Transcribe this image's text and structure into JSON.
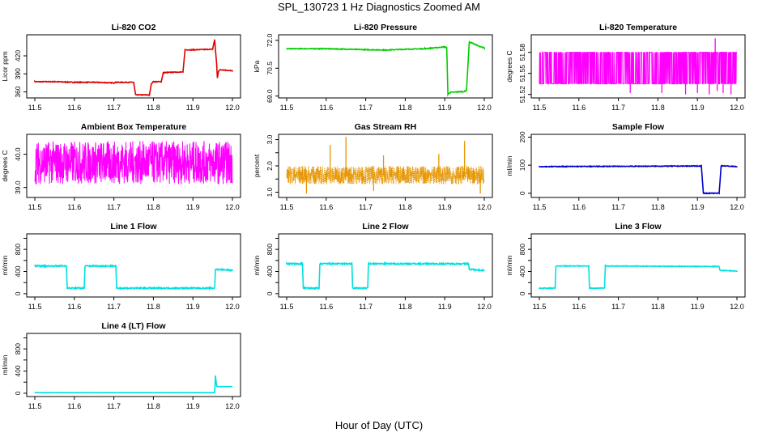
{
  "page": {
    "title": "SPL_130723  1 Hz Diagnostics Zoomed AM",
    "xlabel": "Hour of Day (UTC)"
  },
  "chart_data": [
    {
      "type": "line",
      "title": "Li-820 CO2",
      "ylabel": "Licor ppm",
      "color": "#dd0000",
      "xlim": [
        11.5,
        12.0
      ],
      "xticks": [
        "11.5",
        "11.6",
        "11.7",
        "11.8",
        "11.9",
        "12.0"
      ],
      "ylim": [
        350,
        455
      ],
      "yticks": [
        360,
        390,
        420
      ],
      "noise": 0.6,
      "series": [
        {
          "x": [
            11.5,
            11.55,
            11.6,
            11.65,
            11.7,
            11.705,
            11.75,
            11.755,
            11.79,
            11.795,
            11.8,
            11.82,
            11.825,
            11.86,
            11.875,
            11.88,
            11.9,
            11.95,
            11.955,
            11.96,
            11.962,
            11.965,
            11.97,
            12.0
          ],
          "y": [
            377,
            377,
            376,
            376,
            375,
            376,
            376,
            355,
            355,
            374,
            377,
            377,
            392,
            393,
            393,
            430,
            430,
            431,
            447,
            407,
            383,
            395,
            397,
            395
          ]
        }
      ]
    },
    {
      "type": "line",
      "title": "Li-820 Pressure",
      "ylabel": "kPa",
      "color": "#00cc00",
      "xlim": [
        11.5,
        12.0
      ],
      "xticks": [
        "11.5",
        "11.6",
        "11.7",
        "11.8",
        "11.9",
        "12.0"
      ],
      "ylim": [
        68.9,
        72.3
      ],
      "yticks": [
        69.0,
        70.5,
        72.0
      ],
      "ytick_labels": [
        "69.0",
        "70.5",
        "72.0"
      ],
      "noise": 0.02,
      "series": [
        {
          "x": [
            11.5,
            11.6,
            11.7,
            11.75,
            11.8,
            11.85,
            11.9,
            11.905,
            11.908,
            11.915,
            11.95,
            11.955,
            11.962,
            11.97,
            11.99,
            12.0
          ],
          "y": [
            71.55,
            71.55,
            71.5,
            71.48,
            71.52,
            71.55,
            71.65,
            71.6,
            69.1,
            69.2,
            69.25,
            69.3,
            71.9,
            71.85,
            71.65,
            71.6
          ]
        }
      ]
    },
    {
      "type": "line",
      "title": "Li-820 Temperature",
      "ylabel": "degrees C",
      "color": "#ff00ff",
      "xlim": [
        11.5,
        12.0
      ],
      "xticks": [
        "11.5",
        "11.6",
        "11.7",
        "11.8",
        "11.9",
        "12.0"
      ],
      "ylim": [
        51.515,
        51.605
      ],
      "yticks": [
        51.52,
        51.55,
        51.58
      ],
      "ytick_labels": [
        "51.52",
        "51.55",
        "51.58"
      ],
      "levels": [
        51.535,
        51.58
      ],
      "spikes": [
        {
          "x": 11.73,
          "y": 51.522
        },
        {
          "x": 11.81,
          "y": 51.522
        },
        {
          "x": 11.87,
          "y": 51.52
        },
        {
          "x": 11.9,
          "y": 51.522
        },
        {
          "x": 11.93,
          "y": 51.52
        },
        {
          "x": 11.945,
          "y": 51.6
        },
        {
          "x": 11.95,
          "y": 51.525
        },
        {
          "x": 11.965,
          "y": 51.522
        },
        {
          "x": 11.985,
          "y": 51.52
        }
      ]
    },
    {
      "type": "line",
      "title": "Ambient Box Temperature",
      "ylabel": "degrees C",
      "color": "#ff00ff",
      "xlim": [
        11.5,
        12.0
      ],
      "xticks": [
        "11.5",
        "11.6",
        "11.7",
        "11.8",
        "11.9",
        "12.0"
      ],
      "ylim": [
        38.7,
        40.6
      ],
      "yticks": [
        39.0,
        40.0
      ],
      "ytick_labels": [
        "39.0",
        "40.0"
      ],
      "band": [
        39.1,
        40.4
      ]
    },
    {
      "type": "scatter",
      "title": "Gas Stream RH",
      "ylabel": "percent",
      "color": "#e69500",
      "xlim": [
        11.5,
        12.0
      ],
      "xticks": [
        "11.5",
        "11.6",
        "11.7",
        "11.8",
        "11.9",
        "12.0"
      ],
      "ylim": [
        0.8,
        3.2
      ],
      "yticks": [
        1.0,
        1.5,
        2.0,
        2.5,
        3.0
      ],
      "ytick_labels": [
        "1.0",
        "",
        "2.0",
        "",
        "3.0"
      ],
      "band": [
        1.3,
        2.0
      ],
      "spikes": [
        {
          "x": 11.61,
          "y": 2.8
        },
        {
          "x": 11.65,
          "y": 3.1
        },
        {
          "x": 11.745,
          "y": 2.4
        },
        {
          "x": 11.885,
          "y": 2.45
        },
        {
          "x": 11.95,
          "y": 2.95
        },
        {
          "x": 11.55,
          "y": 0.95
        },
        {
          "x": 11.72,
          "y": 1.05
        },
        {
          "x": 11.99,
          "y": 0.95
        }
      ]
    },
    {
      "type": "line",
      "title": "Sample Flow",
      "ylabel": "ml/min",
      "color": "#0000cc",
      "xlim": [
        11.5,
        12.0
      ],
      "xticks": [
        "11.5",
        "11.6",
        "11.7",
        "11.8",
        "11.9",
        "12.0"
      ],
      "ylim": [
        -15,
        210
      ],
      "yticks": [
        0,
        100,
        200
      ],
      "noise": 1.2,
      "series": [
        {
          "x": [
            11.5,
            11.91,
            11.915,
            11.955,
            11.96,
            12.0
          ],
          "y": [
            95,
            97,
            0,
            0,
            98,
            95
          ]
        }
      ]
    },
    {
      "type": "line",
      "title": "Line 1 Flow",
      "ylabel": "ml/min",
      "color": "#00e0e0",
      "xlim": [
        11.5,
        12.0
      ],
      "xticks": [
        "11.5",
        "11.6",
        "11.7",
        "11.8",
        "11.9",
        "12.0"
      ],
      "ylim": [
        -60,
        1080
      ],
      "yticks": [
        0,
        200,
        400,
        600,
        800,
        1000
      ],
      "ytick_labels": [
        "0",
        "",
        "400",
        "",
        "800",
        ""
      ],
      "noise": 12,
      "series": [
        {
          "x": [
            11.5,
            11.58,
            11.582,
            11.625,
            11.627,
            11.705,
            11.707,
            11.955,
            11.957,
            12.0
          ],
          "y": [
            500,
            500,
            100,
            100,
            500,
            500,
            100,
            100,
            440,
            420
          ]
        }
      ]
    },
    {
      "type": "line",
      "title": "Line 2 Flow",
      "ylabel": "ml/min",
      "color": "#00e0e0",
      "xlim": [
        11.5,
        12.0
      ],
      "xticks": [
        "11.5",
        "11.6",
        "11.7",
        "11.8",
        "11.9",
        "12.0"
      ],
      "ylim": [
        -60,
        1080
      ],
      "yticks": [
        0,
        200,
        400,
        600,
        800,
        1000
      ],
      "ytick_labels": [
        "0",
        "",
        "400",
        "",
        "800",
        ""
      ],
      "noise": 12,
      "series": [
        {
          "x": [
            11.5,
            11.54,
            11.542,
            11.582,
            11.584,
            11.665,
            11.667,
            11.705,
            11.707,
            11.96,
            11.962,
            12.0
          ],
          "y": [
            540,
            540,
            100,
            100,
            540,
            540,
            100,
            100,
            540,
            540,
            440,
            420
          ]
        }
      ]
    },
    {
      "type": "line",
      "title": "Line 3 Flow",
      "ylabel": "ml/min",
      "color": "#00e0e0",
      "xlim": [
        11.5,
        12.0
      ],
      "xticks": [
        "11.5",
        "11.6",
        "11.7",
        "11.8",
        "11.9",
        "12.0"
      ],
      "ylim": [
        -60,
        1080
      ],
      "yticks": [
        0,
        200,
        400,
        600,
        800,
        1000
      ],
      "ytick_labels": [
        "0",
        "",
        "400",
        "",
        "800",
        ""
      ],
      "noise": 6,
      "series": [
        {
          "x": [
            11.5,
            11.54,
            11.542,
            11.625,
            11.627,
            11.665,
            11.667,
            11.955,
            11.957,
            12.0
          ],
          "y": [
            100,
            100,
            500,
            500,
            100,
            100,
            500,
            490,
            420,
            410
          ]
        }
      ]
    },
    {
      "type": "line",
      "title": "Line 4 (LT) Flow",
      "ylabel": "ml/min",
      "color": "#00e0e0",
      "xlim": [
        11.5,
        12.0
      ],
      "xticks": [
        "11.5",
        "11.6",
        "11.7",
        "11.8",
        "11.9",
        "12.0"
      ],
      "ylim": [
        -60,
        1080
      ],
      "yticks": [
        0,
        200,
        400,
        600,
        800,
        1000
      ],
      "ytick_labels": [
        "0",
        "",
        "400",
        "",
        "800",
        ""
      ],
      "noise": 2,
      "series": [
        {
          "x": [
            11.5,
            11.955,
            11.957,
            11.96,
            11.962,
            12.0
          ],
          "y": [
            10,
            10,
            320,
            130,
            120,
            120
          ]
        }
      ]
    }
  ]
}
